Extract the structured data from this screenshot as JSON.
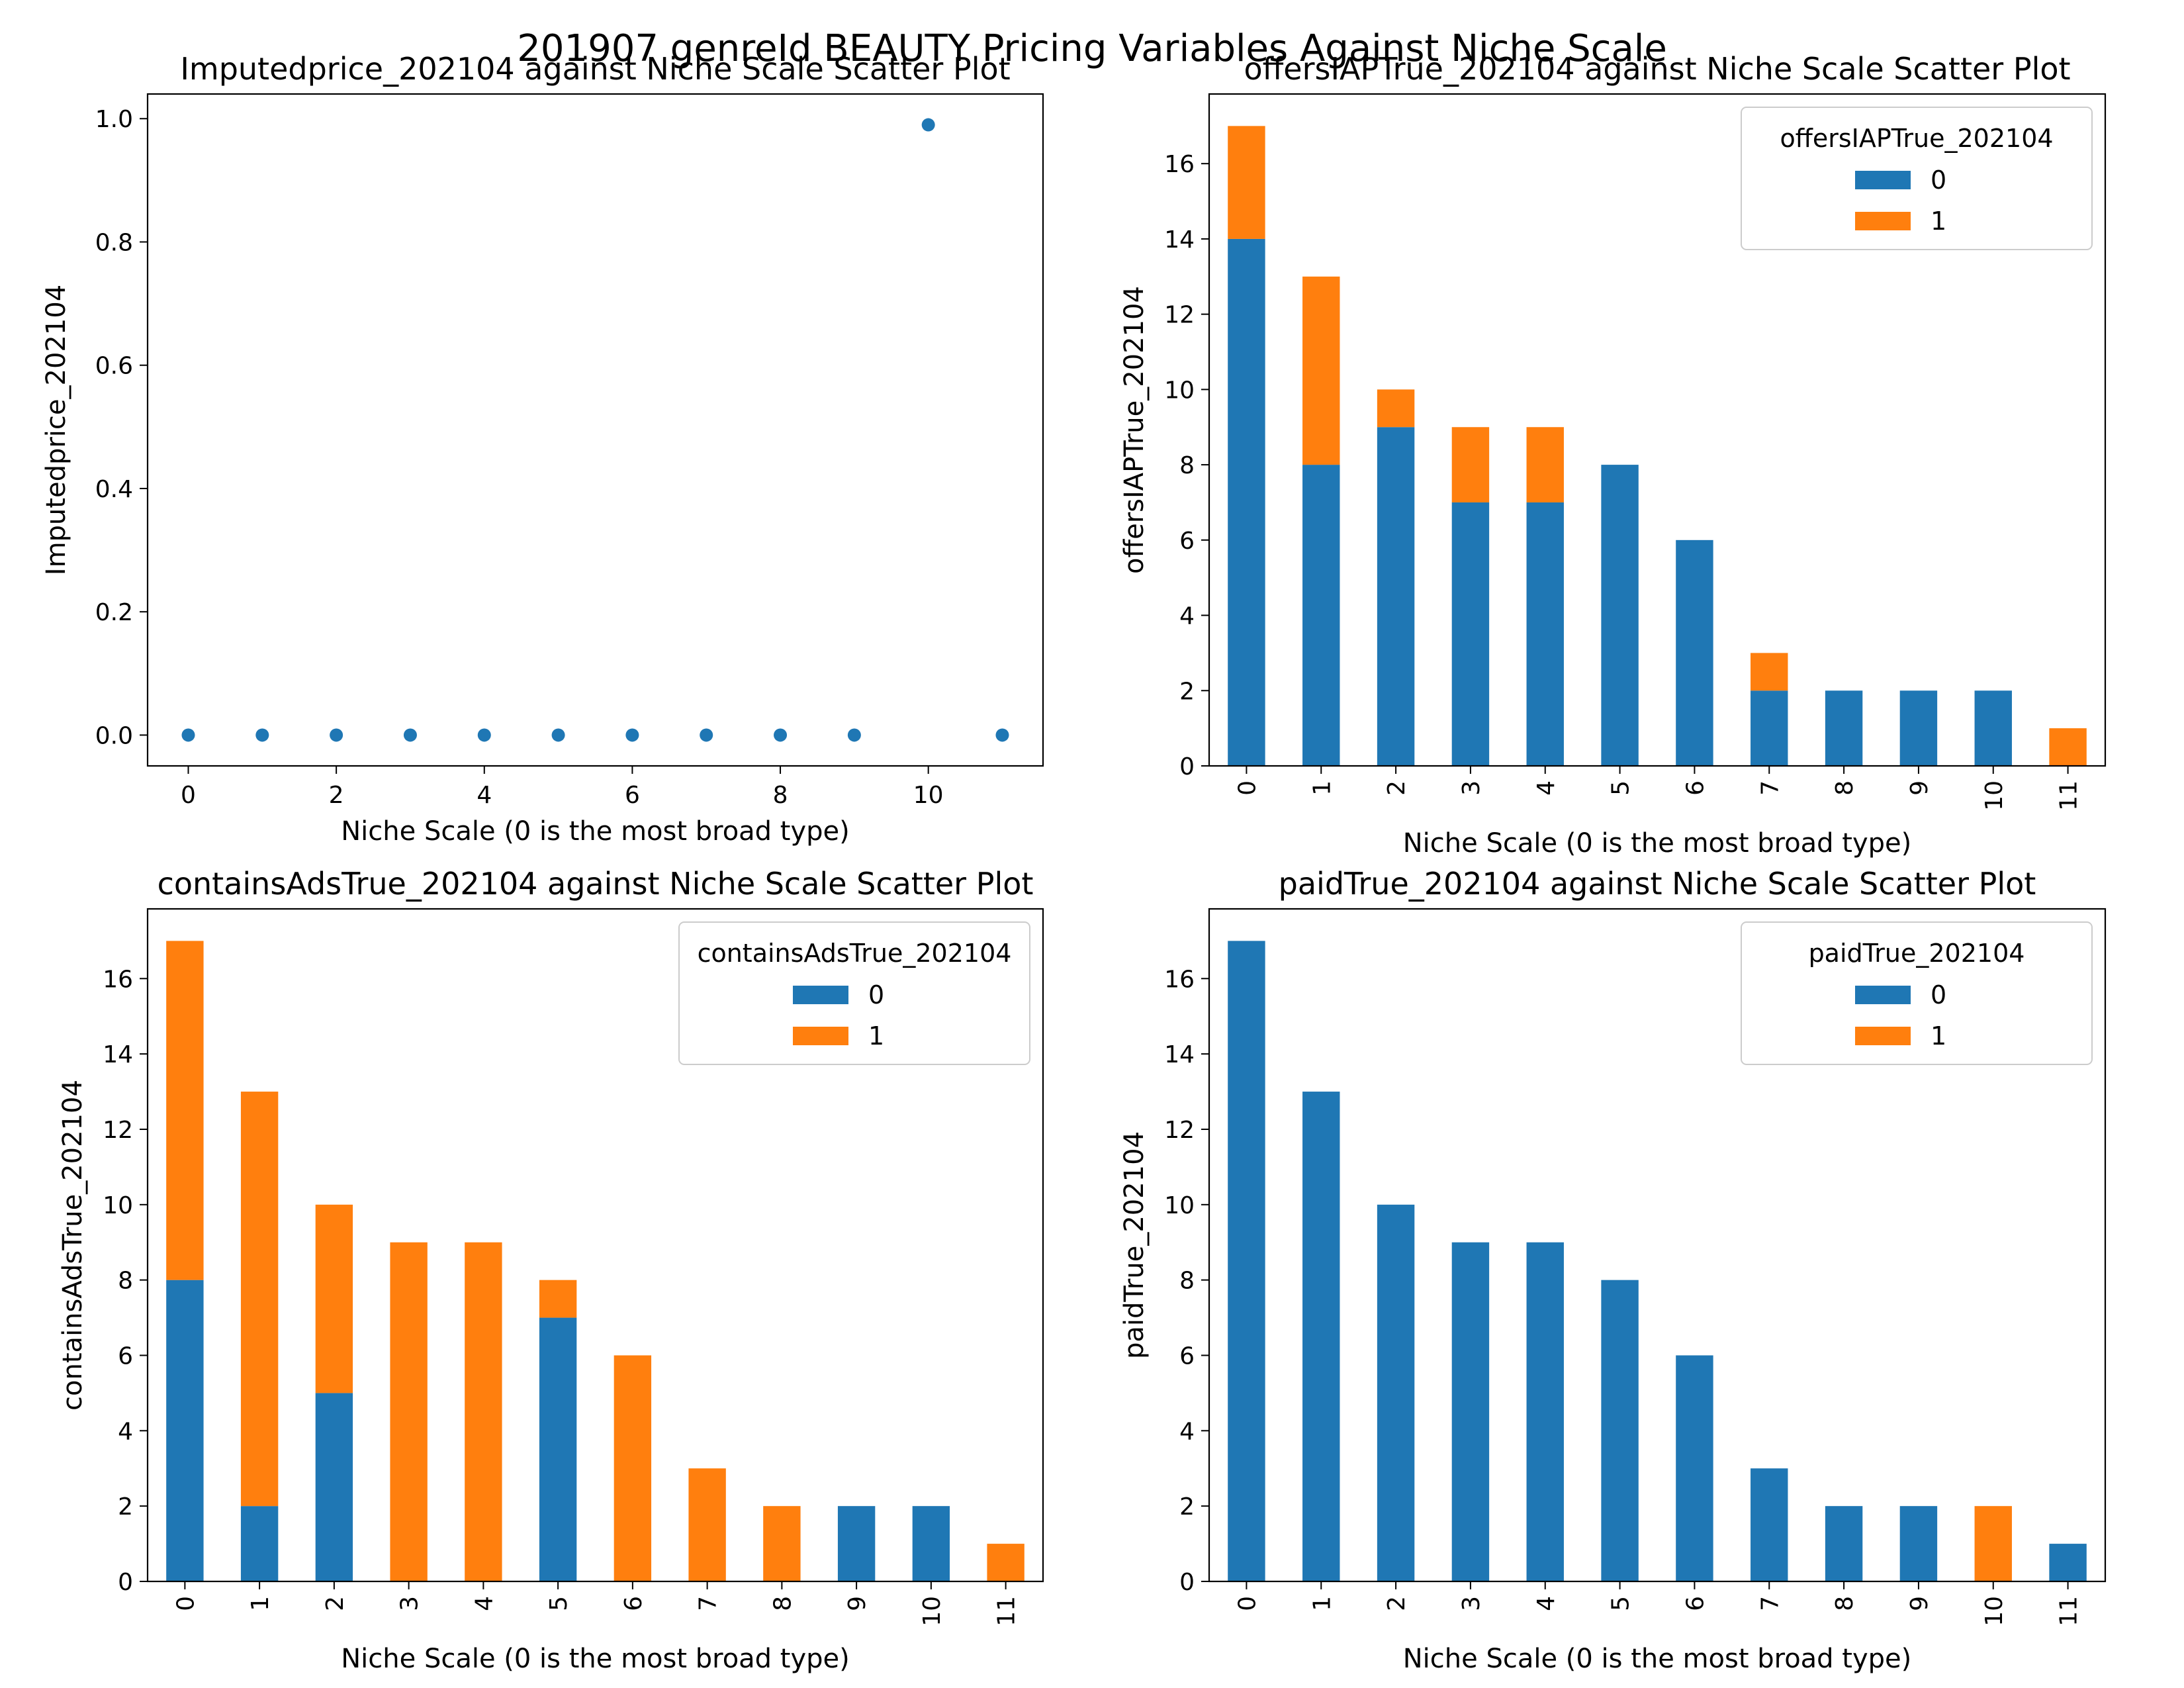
{
  "figure": {
    "suptitle": "201907 genreId BEAUTY Pricing Variables Against Niche Scale"
  },
  "colors": {
    "zero": "#1f77b4",
    "one": "#ff7f0e"
  },
  "chart_data": [
    {
      "type": "scatter",
      "title": "Imputedprice_202104 against Niche Scale Scatter Plot",
      "xlabel": "Niche Scale (0 is the most broad type)",
      "ylabel": "Imputedprice_202104",
      "x": [
        0,
        1,
        2,
        3,
        4,
        5,
        6,
        7,
        8,
        9,
        10,
        11
      ],
      "y": [
        0,
        0,
        0,
        0,
        0,
        0,
        0,
        0,
        0,
        0,
        0.99,
        0
      ],
      "xticks": [
        "0",
        "2",
        "4",
        "6",
        "8",
        "10"
      ],
      "yticks": [
        "0.0",
        "0.2",
        "0.4",
        "0.6",
        "0.8",
        "1.0"
      ],
      "xlim": [
        -0.55,
        11.55
      ],
      "ylim": [
        -0.05,
        1.04
      ]
    },
    {
      "type": "bar",
      "stacked": true,
      "title": "offersIAPTrue_202104 against Niche Scale Scatter Plot",
      "xlabel": "Niche Scale (0 is the most broad type)",
      "ylabel": "offersIAPTrue_202104",
      "categories": [
        "0",
        "1",
        "2",
        "3",
        "4",
        "5",
        "6",
        "7",
        "8",
        "9",
        "10",
        "11"
      ],
      "series": [
        {
          "name": "0",
          "values": [
            14,
            8,
            9,
            7,
            7,
            8,
            6,
            2,
            2,
            2,
            2,
            0
          ]
        },
        {
          "name": "1",
          "values": [
            3,
            5,
            1,
            2,
            2,
            0,
            0,
            1,
            0,
            0,
            0,
            1
          ]
        }
      ],
      "legend_title": "offersIAPTrue_202104",
      "legend": "top-right",
      "yticks": [
        "0",
        "2",
        "4",
        "6",
        "8",
        "10",
        "12",
        "14",
        "16"
      ],
      "ylim": [
        0,
        17.85
      ]
    },
    {
      "type": "bar",
      "stacked": true,
      "title": "containsAdsTrue_202104 against Niche Scale Scatter Plot",
      "xlabel": "Niche Scale (0 is the most broad type)",
      "ylabel": "containsAdsTrue_202104",
      "categories": [
        "0",
        "1",
        "2",
        "3",
        "4",
        "5",
        "6",
        "7",
        "8",
        "9",
        "10",
        "11"
      ],
      "series": [
        {
          "name": "0",
          "values": [
            8,
            2,
            5,
            0,
            0,
            7,
            0,
            0,
            0,
            2,
            2,
            0
          ]
        },
        {
          "name": "1",
          "values": [
            9,
            11,
            5,
            9,
            9,
            1,
            6,
            3,
            2,
            0,
            0,
            1
          ]
        }
      ],
      "legend_title": "containsAdsTrue_202104",
      "legend": "top-right",
      "yticks": [
        "0",
        "2",
        "4",
        "6",
        "8",
        "10",
        "12",
        "14",
        "16"
      ],
      "ylim": [
        0,
        17.85
      ]
    },
    {
      "type": "bar",
      "stacked": true,
      "title": "paidTrue_202104 against Niche Scale Scatter Plot",
      "xlabel": "Niche Scale (0 is the most broad type)",
      "ylabel": "paidTrue_202104",
      "categories": [
        "0",
        "1",
        "2",
        "3",
        "4",
        "5",
        "6",
        "7",
        "8",
        "9",
        "10",
        "11"
      ],
      "series": [
        {
          "name": "0",
          "values": [
            17,
            13,
            10,
            9,
            9,
            8,
            6,
            3,
            2,
            2,
            0,
            1
          ]
        },
        {
          "name": "1",
          "values": [
            0,
            0,
            0,
            0,
            0,
            0,
            0,
            0,
            0,
            0,
            2,
            0
          ]
        }
      ],
      "legend_title": "paidTrue_202104",
      "legend": "top-right",
      "yticks": [
        "0",
        "2",
        "4",
        "6",
        "8",
        "10",
        "12",
        "14",
        "16"
      ],
      "ylim": [
        0,
        17.85
      ]
    }
  ]
}
